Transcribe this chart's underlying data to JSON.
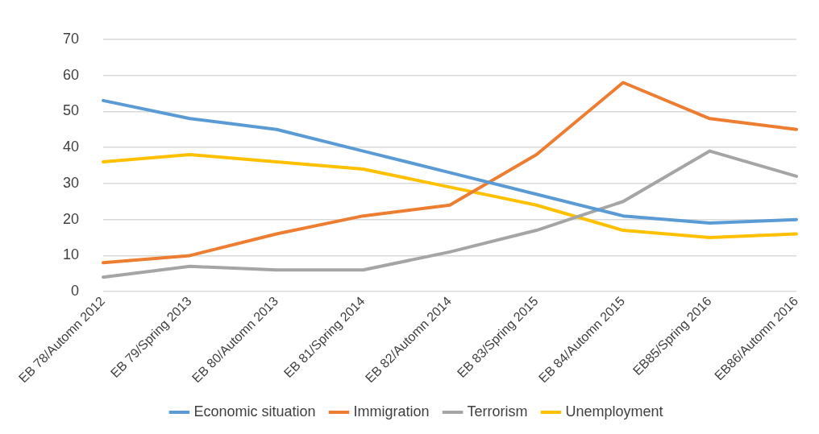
{
  "chart_data": {
    "type": "line",
    "categories": [
      "EB 78/Automn 2012",
      "EB 79/Spring 2013",
      "EB 80/Automn 2013",
      "EB 81/Spring 2014",
      "EB 82/Automn 2014",
      "EB 83/Spring 2015",
      "EB 84/Automn 2015",
      "EB85/Spring 2016",
      "EB86/Automn 2016"
    ],
    "series": [
      {
        "name": "Economic situation",
        "color": "#5b9bd5",
        "values": [
          53,
          48,
          45,
          39,
          33,
          27,
          21,
          19,
          20
        ]
      },
      {
        "name": "Immigration",
        "color": "#ed7d31",
        "values": [
          8,
          10,
          16,
          21,
          24,
          38,
          58,
          48,
          45
        ]
      },
      {
        "name": "Terrorism",
        "color": "#a5a5a5",
        "values": [
          4,
          7,
          6,
          6,
          11,
          17,
          25,
          39,
          32
        ]
      },
      {
        "name": "Unemployment",
        "color": "#ffc000",
        "values": [
          36,
          38,
          36,
          34,
          29,
          24,
          17,
          15,
          16
        ]
      }
    ],
    "ylim": [
      0,
      70
    ],
    "yticks": [
      0,
      10,
      20,
      30,
      40,
      50,
      60,
      70
    ],
    "grid": "y",
    "legend": "bottom",
    "marker": "none",
    "line_style": "solid"
  }
}
